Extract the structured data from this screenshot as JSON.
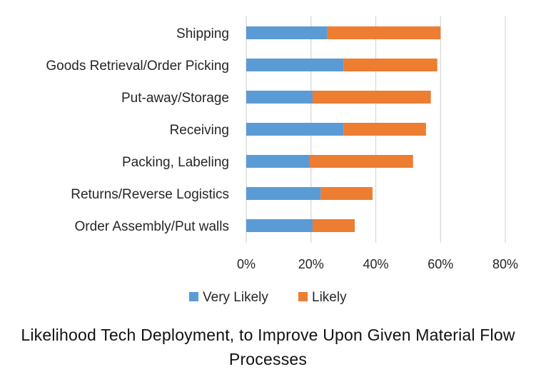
{
  "chart_data": {
    "type": "bar",
    "orientation": "horizontal",
    "stacked": true,
    "categories": [
      "Shipping",
      "Goods Retrieval/Order Picking",
      "Put-away/Storage",
      "Receiving",
      "Packing, Labeling",
      "Returns/Reverse Logistics",
      "Order Assembly/Put walls"
    ],
    "series": [
      {
        "name": "Very Likely",
        "color": "#5B9BD5",
        "values": [
          25,
          30,
          20.5,
          30,
          19.5,
          23,
          20.5
        ]
      },
      {
        "name": "Likely",
        "color": "#ED7D31",
        "values": [
          35,
          29,
          36.5,
          25.5,
          32,
          16,
          13
        ]
      }
    ],
    "xlim": [
      0,
      80
    ],
    "xticks": [
      "0%",
      "20%",
      "40%",
      "60%",
      "80%"
    ],
    "grid": true,
    "legend_position": "bottom",
    "caption": "Likelihood Tech Deployment, to Improve Upon Given Material Flow Processes"
  }
}
